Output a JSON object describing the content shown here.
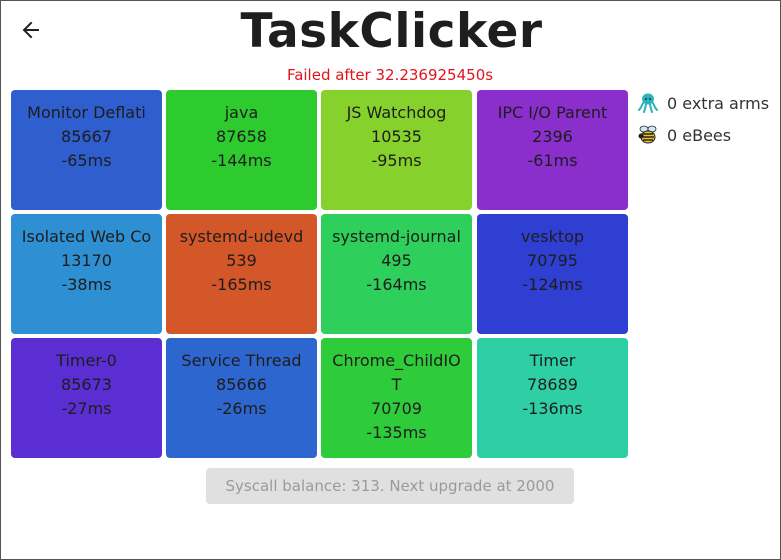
{
  "header": {
    "title": "TaskClicker"
  },
  "status": "Failed after 32.236925450s",
  "tiles": [
    {
      "name": "Monitor Deflati",
      "pid": "85667",
      "delta": "-65ms",
      "color": "#2f5fcf"
    },
    {
      "name": "java",
      "pid": "87658",
      "delta": "-144ms",
      "color": "#2ecb2e"
    },
    {
      "name": "JS Watchdog",
      "pid": "10535",
      "delta": "-95ms",
      "color": "#86d12b"
    },
    {
      "name": "IPC I/O Parent",
      "pid": "2396",
      "delta": "-61ms",
      "color": "#8a2ecc"
    },
    {
      "name": "Isolated Web Co",
      "pid": "13170",
      "delta": "-38ms",
      "color": "#2e8fd2"
    },
    {
      "name": "systemd-udevd",
      "pid": "539",
      "delta": "-165ms",
      "color": "#d4572a"
    },
    {
      "name": "systemd-journal",
      "pid": "495",
      "delta": "-164ms",
      "color": "#2ecf5a"
    },
    {
      "name": "vesktop",
      "pid": "70795",
      "delta": "-124ms",
      "color": "#2e3fd2"
    },
    {
      "name": "Timer-0",
      "pid": "85673",
      "delta": "-27ms",
      "color": "#5a2ed2"
    },
    {
      "name": "Service Thread",
      "pid": "85666",
      "delta": "-26ms",
      "color": "#2e66d0"
    },
    {
      "name": "Chrome_ChildIOT",
      "pid": "70709",
      "delta": "-135ms",
      "color": "#2ecb3a"
    },
    {
      "name": "Timer",
      "pid": "78689",
      "delta": "-136ms",
      "color": "#2ecfa5"
    }
  ],
  "sidebar": {
    "arms_label": "0 extra arms",
    "arms_icon": "octopus-icon",
    "bees_label": "0 eBees",
    "bees_icon": "bee-icon"
  },
  "footer": {
    "balance_text": "Syscall balance: 313. Next upgrade at 2000"
  },
  "colors": {
    "status": "#e0141e",
    "title": "#1e1e1e"
  }
}
